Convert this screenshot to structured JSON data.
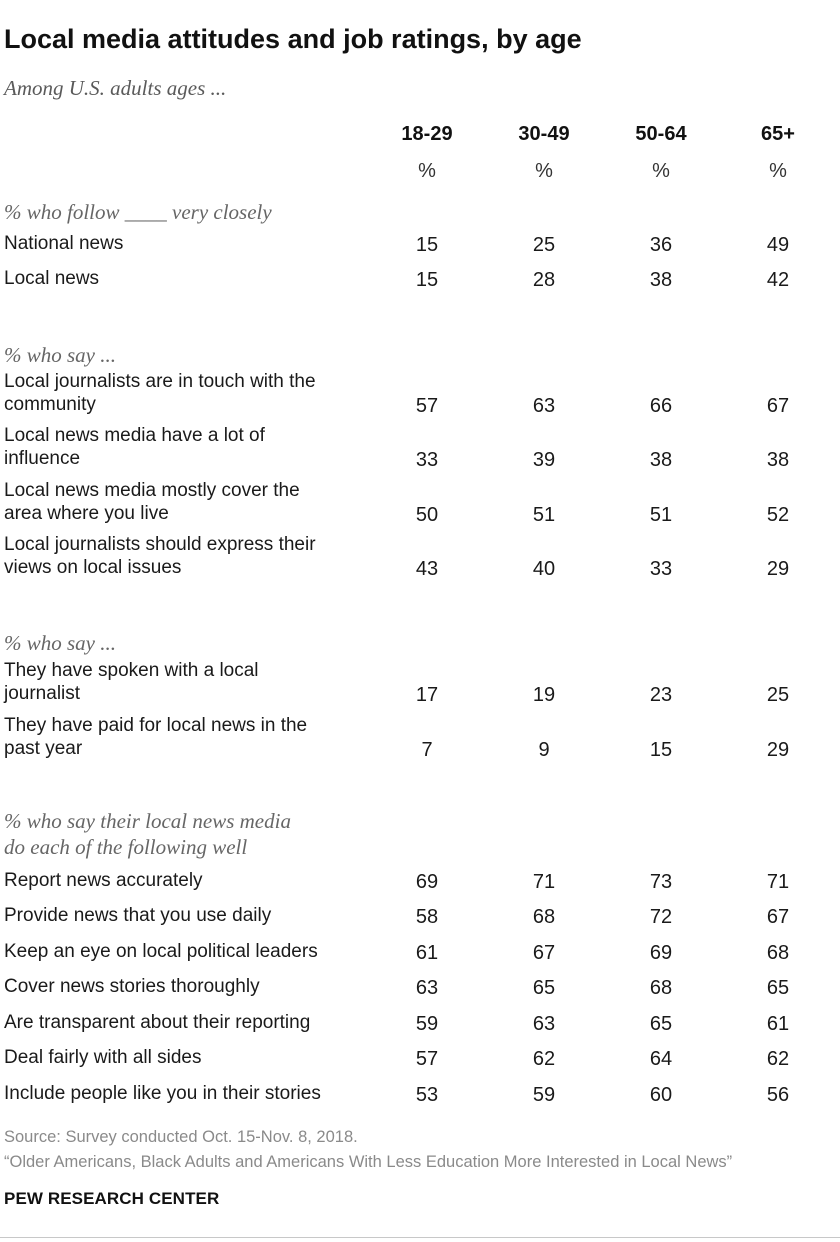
{
  "title": "Local media attitudes and job ratings, by age",
  "subtitle": "Among U.S. adults ages ...",
  "unit": "%",
  "source": "Source: Survey conducted Oct. 15-Nov. 8, 2018.",
  "note": "“Older Americans, Black Adults and Americans With Less Education More Interested in Local News”",
  "brand": "PEW RESEARCH CENTER",
  "chart_data": {
    "type": "table",
    "title": "Local media attitudes and job ratings, by age",
    "columns": [
      "18-29",
      "30-49",
      "50-64",
      "65+"
    ],
    "sections": [
      {
        "heading": [
          "% who follow ____ very closely"
        ],
        "rows": [
          {
            "label": [
              "National news"
            ],
            "values": [
              15,
              25,
              36,
              49
            ]
          },
          {
            "label": [
              "Local news"
            ],
            "values": [
              15,
              28,
              38,
              42
            ]
          }
        ]
      },
      {
        "heading": [
          "% who say ..."
        ],
        "rows": [
          {
            "label": [
              "Local journalists are in touch with the",
              "community"
            ],
            "values": [
              57,
              63,
              66,
              67
            ]
          },
          {
            "label": [
              "Local news media have a lot of",
              "influence"
            ],
            "values": [
              33,
              39,
              38,
              38
            ]
          },
          {
            "label": [
              "Local news media mostly cover the",
              "area where you live"
            ],
            "values": [
              50,
              51,
              51,
              52
            ]
          },
          {
            "label": [
              "Local journalists should express their",
              "views on local issues"
            ],
            "values": [
              43,
              40,
              33,
              29
            ]
          }
        ]
      },
      {
        "heading": [
          "% who say ..."
        ],
        "rows": [
          {
            "label": [
              "They have spoken with a local",
              "journalist"
            ],
            "values": [
              17,
              19,
              23,
              25
            ]
          },
          {
            "label": [
              "They have paid for local news in the",
              "past year"
            ],
            "values": [
              7,
              9,
              15,
              29
            ]
          }
        ]
      },
      {
        "heading": [
          "% who say their local news media",
          "do each of the following well"
        ],
        "rows": [
          {
            "label": [
              "Report news accurately"
            ],
            "values": [
              69,
              71,
              73,
              71
            ]
          },
          {
            "label": [
              "Provide news that you use daily"
            ],
            "values": [
              58,
              68,
              72,
              67
            ]
          },
          {
            "label": [
              "Keep an eye on local political leaders"
            ],
            "values": [
              61,
              67,
              69,
              68
            ]
          },
          {
            "label": [
              "Cover news stories thoroughly"
            ],
            "values": [
              63,
              65,
              68,
              65
            ]
          },
          {
            "label": [
              "Are transparent about their reporting"
            ],
            "values": [
              59,
              63,
              65,
              61
            ]
          },
          {
            "label": [
              "Deal fairly with all sides"
            ],
            "values": [
              57,
              62,
              64,
              62
            ]
          },
          {
            "label": [
              "Include people like you in their stories"
            ],
            "values": [
              53,
              59,
              60,
              56
            ]
          }
        ]
      }
    ]
  }
}
